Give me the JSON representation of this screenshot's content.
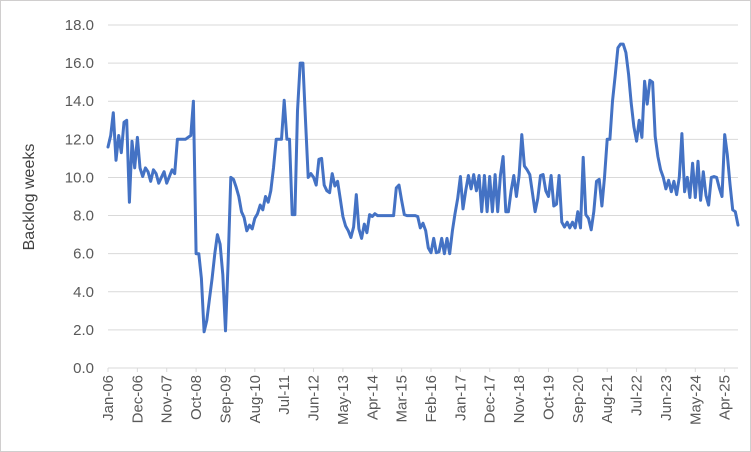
{
  "chart_data": {
    "type": "line",
    "title": "",
    "xlabel": "",
    "ylabel": "Backlog weeks",
    "ylim": [
      0,
      18
    ],
    "ytick_step": 2,
    "y_tick_labels": [
      "0.0",
      "2.0",
      "4.0",
      "6.0",
      "8.0",
      "10.0",
      "12.0",
      "14.0",
      "16.0",
      "18.0"
    ],
    "x_tick_labels": [
      "Jan-06",
      "Dec-06",
      "Nov-07",
      "Oct-08",
      "Sep-09",
      "Aug-10",
      "Jul-11",
      "Jun-12",
      "May-13",
      "Apr-14",
      "Mar-15",
      "Feb-16",
      "Jan-17",
      "Dec-17",
      "Nov-18",
      "Oct-19",
      "Sep-20",
      "Aug-21",
      "Jul-22",
      "Jun-23",
      "May-24",
      "Apr-25"
    ],
    "x_label_interval": 11,
    "x_start": "Jan-06",
    "grid": "horizontal",
    "legend": "none",
    "line_color": "#4472C4",
    "line_width": 3,
    "grid_color": "#d9d9d9",
    "axis_text_color": "#595959",
    "values": [
      11.6,
      12.2,
      13.4,
      10.9,
      12.2,
      11.3,
      12.9,
      13.0,
      8.7,
      11.9,
      10.5,
      12.1,
      10.5,
      10.05,
      10.5,
      10.3,
      9.8,
      10.4,
      10.2,
      9.7,
      10.0,
      10.3,
      9.7,
      10.05,
      10.4,
      10.2,
      12.0,
      12.0,
      12.0,
      12.0,
      12.1,
      12.2,
      14.0,
      6.0,
      6.0,
      4.7,
      1.9,
      2.5,
      3.6,
      4.7,
      6.0,
      7.0,
      6.5,
      4.9,
      1.95,
      5.5,
      10.0,
      9.9,
      9.5,
      9.0,
      8.2,
      7.9,
      7.2,
      7.5,
      7.3,
      7.85,
      8.1,
      8.55,
      8.3,
      9.0,
      8.7,
      9.3,
      10.5,
      12.0,
      12.0,
      12.0,
      14.05,
      12.0,
      12.0,
      8.05,
      8.05,
      13.5,
      16.0,
      16.0,
      13.0,
      10.0,
      10.2,
      10.0,
      9.6,
      10.95,
      11.0,
      9.6,
      9.3,
      9.2,
      10.2,
      9.55,
      9.8,
      8.9,
      7.95,
      7.45,
      7.2,
      6.85,
      7.4,
      9.1,
      7.3,
      6.8,
      7.55,
      7.1,
      8.05,
      7.95,
      8.1,
      8.0,
      8.0,
      8.0,
      8.0,
      8.0,
      8.0,
      8.0,
      9.45,
      9.6,
      8.8,
      8.05,
      8.0,
      8.0,
      8.0,
      8.0,
      7.95,
      7.35,
      7.6,
      7.2,
      6.3,
      6.05,
      6.8,
      6.05,
      6.1,
      6.8,
      6.0,
      6.8,
      6.0,
      7.2,
      8.1,
      8.9,
      10.05,
      8.35,
      9.3,
      10.1,
      9.4,
      10.15,
      9.3,
      10.1,
      8.2,
      10.1,
      8.2,
      10.05,
      8.2,
      10.15,
      8.2,
      10.1,
      11.1,
      8.2,
      8.2,
      9.3,
      10.1,
      9.0,
      10.1,
      12.25,
      10.6,
      10.4,
      10.15,
      9.2,
      8.2,
      8.9,
      10.1,
      10.15,
      9.3,
      9.0,
      10.1,
      8.5,
      8.6,
      10.1,
      7.65,
      7.4,
      7.65,
      7.35,
      7.65,
      7.35,
      8.2,
      7.35,
      11.05,
      8.05,
      7.85,
      7.25,
      8.2,
      9.8,
      9.9,
      8.5,
      10.0,
      12.0,
      12.0,
      14.0,
      15.35,
      16.8,
      17.0,
      17.0,
      16.55,
      15.4,
      13.9,
      12.65,
      11.9,
      13.0,
      12.1,
      15.05,
      13.85,
      15.1,
      15.0,
      12.15,
      11.1,
      10.4,
      10.0,
      9.4,
      9.85,
      9.25,
      9.8,
      9.1,
      10.0,
      12.3,
      9.25,
      10.0,
      8.95,
      10.75,
      8.95,
      10.85,
      8.8,
      10.3,
      9.05,
      8.55,
      10.0,
      10.05,
      10.0,
      9.45,
      9.0,
      12.25,
      11.2,
      9.65,
      8.3,
      8.2,
      7.5
    ]
  }
}
